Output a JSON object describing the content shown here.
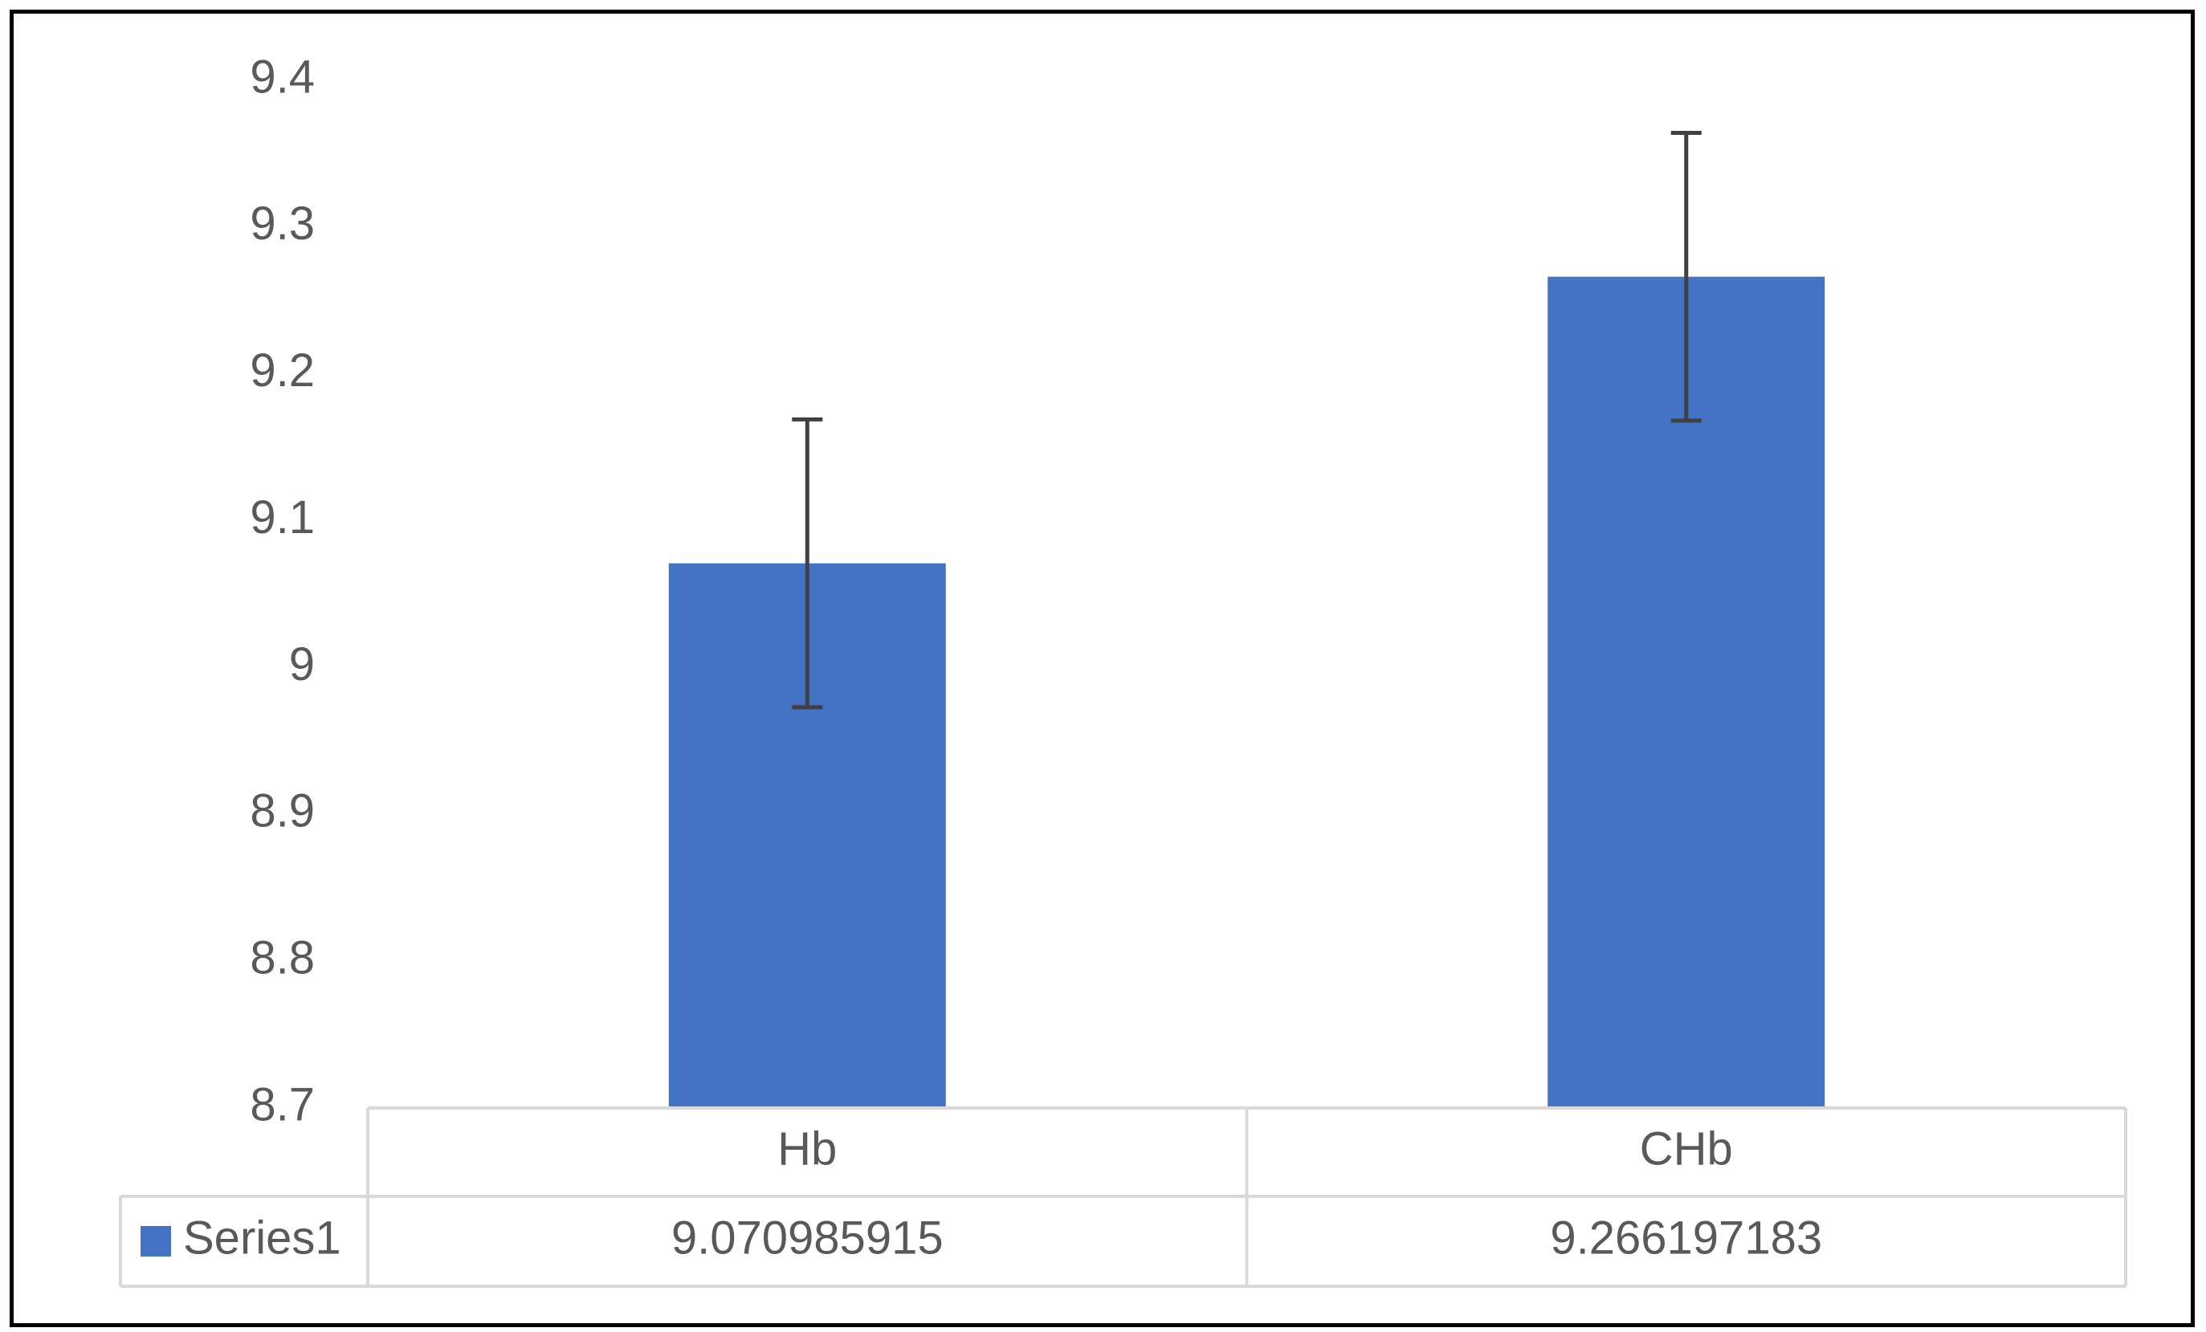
{
  "chart_data": {
    "type": "bar",
    "categories": [
      "Hb",
      "CHb"
    ],
    "series": [
      {
        "name": "Series1",
        "values": [
          9.070985915,
          9.266197183
        ],
        "error_bars": [
          0.098,
          0.098
        ],
        "color": "#4472C4"
      }
    ],
    "ylim": [
      8.7,
      9.4
    ],
    "yticks": [
      8.7,
      8.8,
      8.9,
      9,
      9.1,
      9.2,
      9.3,
      9.4
    ],
    "ytick_labels": [
      "8.7",
      "8.8",
      "8.9",
      "9",
      "9.1",
      "9.2",
      "9.3",
      "9.4"
    ],
    "data_table": {
      "headers": [
        "Hb",
        "CHb"
      ],
      "row_label": "Series1",
      "row_values": [
        "9.070985915",
        "9.266197183"
      ]
    },
    "grid": false,
    "legend": "data-table"
  },
  "colors": {
    "bar": "#4472C4",
    "error_bar": "#404040",
    "text": "#595959",
    "table_lines": "#D9D9D9",
    "frame": "#000000"
  }
}
